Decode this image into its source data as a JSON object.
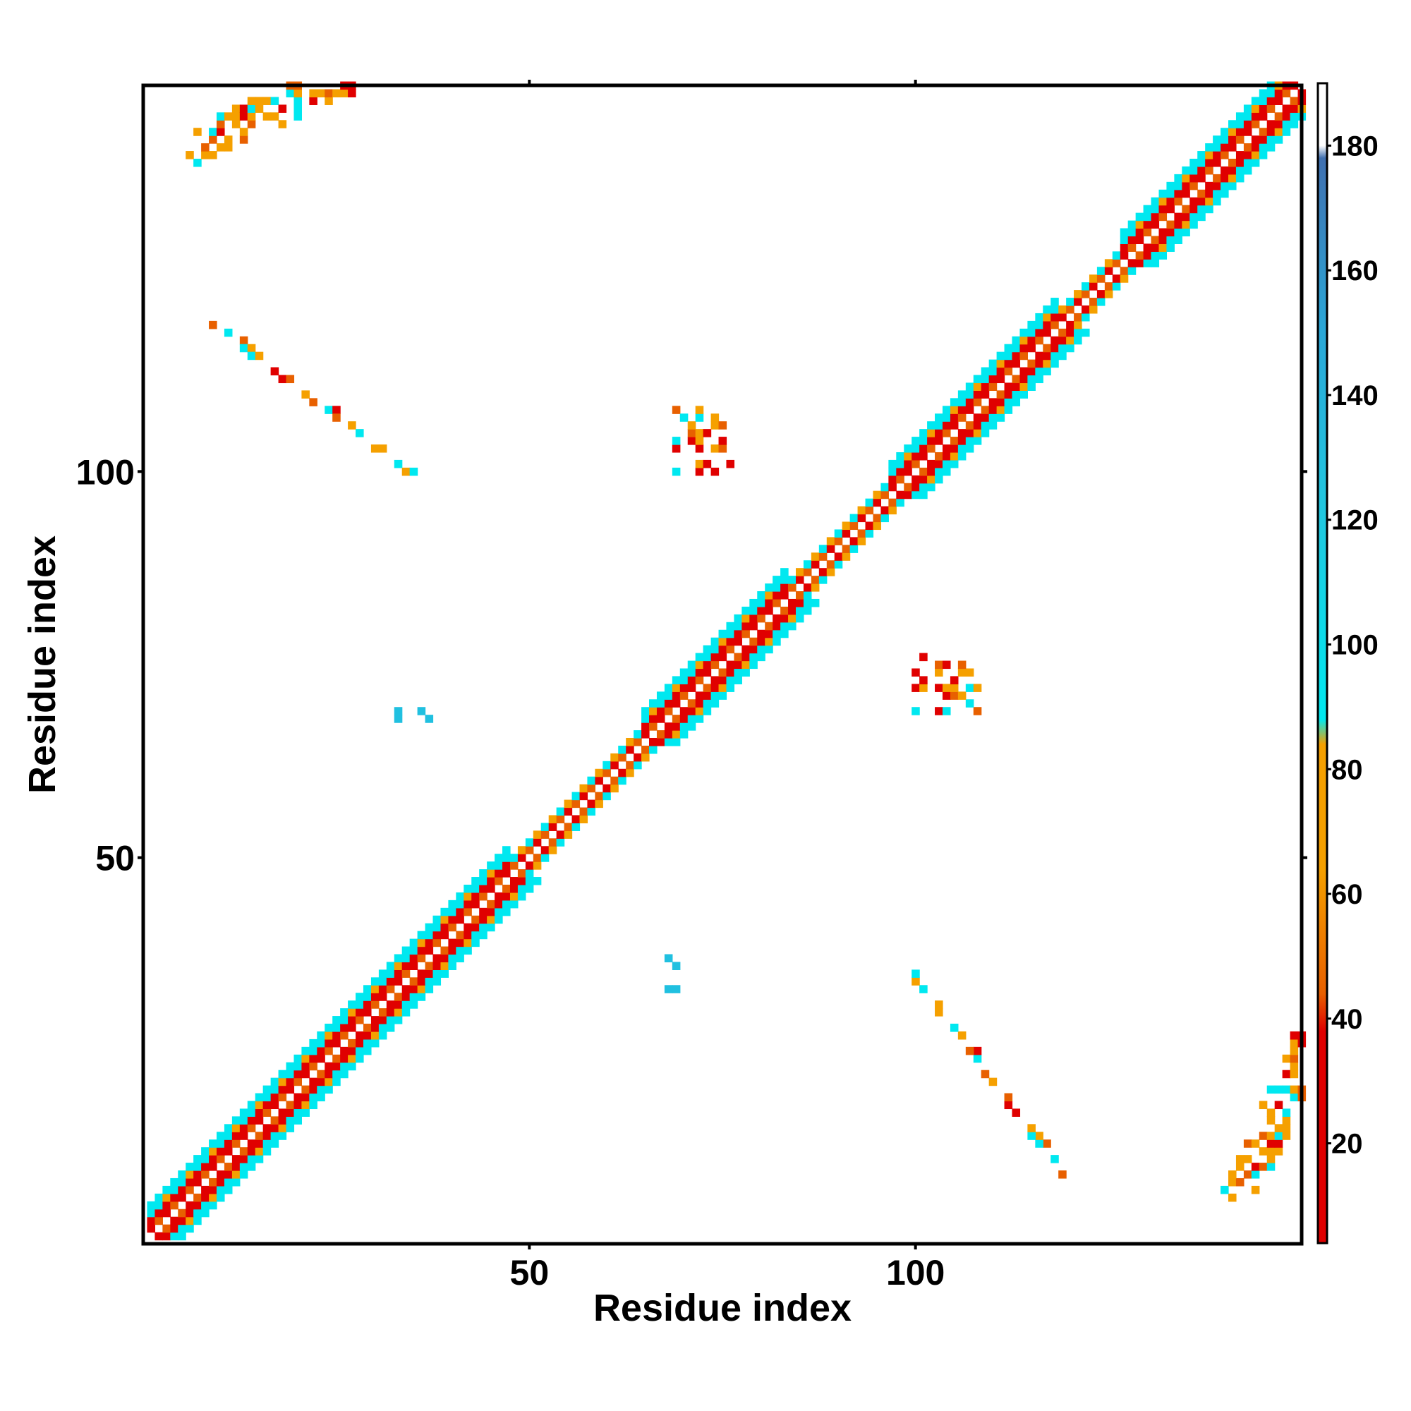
{
  "chart_data": {
    "type": "heatmap",
    "title": "",
    "xlabel": "Residue index",
    "ylabel": "Residue index",
    "x_range": [
      1,
      150
    ],
    "y_range": [
      1,
      150
    ],
    "x_ticks": [
      50,
      100
    ],
    "y_ticks": [
      50,
      100
    ],
    "colorbar": {
      "ticks": [
        20,
        40,
        60,
        80,
        100,
        120,
        140,
        160,
        180
      ],
      "range": [
        4,
        190
      ],
      "stops": [
        {
          "value": 4,
          "color": "#e00000"
        },
        {
          "value": 38,
          "color": "#e00000"
        },
        {
          "value": 44,
          "color": "#e86000"
        },
        {
          "value": 64,
          "color": "#f5a000"
        },
        {
          "value": 84,
          "color": "#f5a000"
        },
        {
          "value": 88,
          "color": "#00e8f0"
        },
        {
          "value": 120,
          "color": "#20c8e0"
        },
        {
          "value": 150,
          "color": "#2aa8d8"
        },
        {
          "value": 178,
          "color": "#4070b0"
        },
        {
          "value": 180,
          "color": "#ffffff"
        },
        {
          "value": 190,
          "color": "#ffffff"
        }
      ]
    },
    "colors": {
      "red": "#e00000",
      "dark_orange": "#e86000",
      "orange": "#f5a000",
      "cyan": "#00e8f0",
      "light_blue": "#20c0e0"
    },
    "regions": [
      {
        "kind": "diagonal_band",
        "from": 1,
        "to": 150
      },
      {
        "kind": "antiparallel_contacts",
        "i": [
          6,
          27
        ],
        "j": [
          119,
          150
        ]
      },
      {
        "kind": "antiparallel_contacts",
        "i": [
          9,
          35
        ],
        "j": [
          100,
          118
        ]
      },
      {
        "kind": "cross_cluster",
        "center_i": 73,
        "center_j": 104
      }
    ],
    "grid": false,
    "legend": "colorbar-right"
  }
}
